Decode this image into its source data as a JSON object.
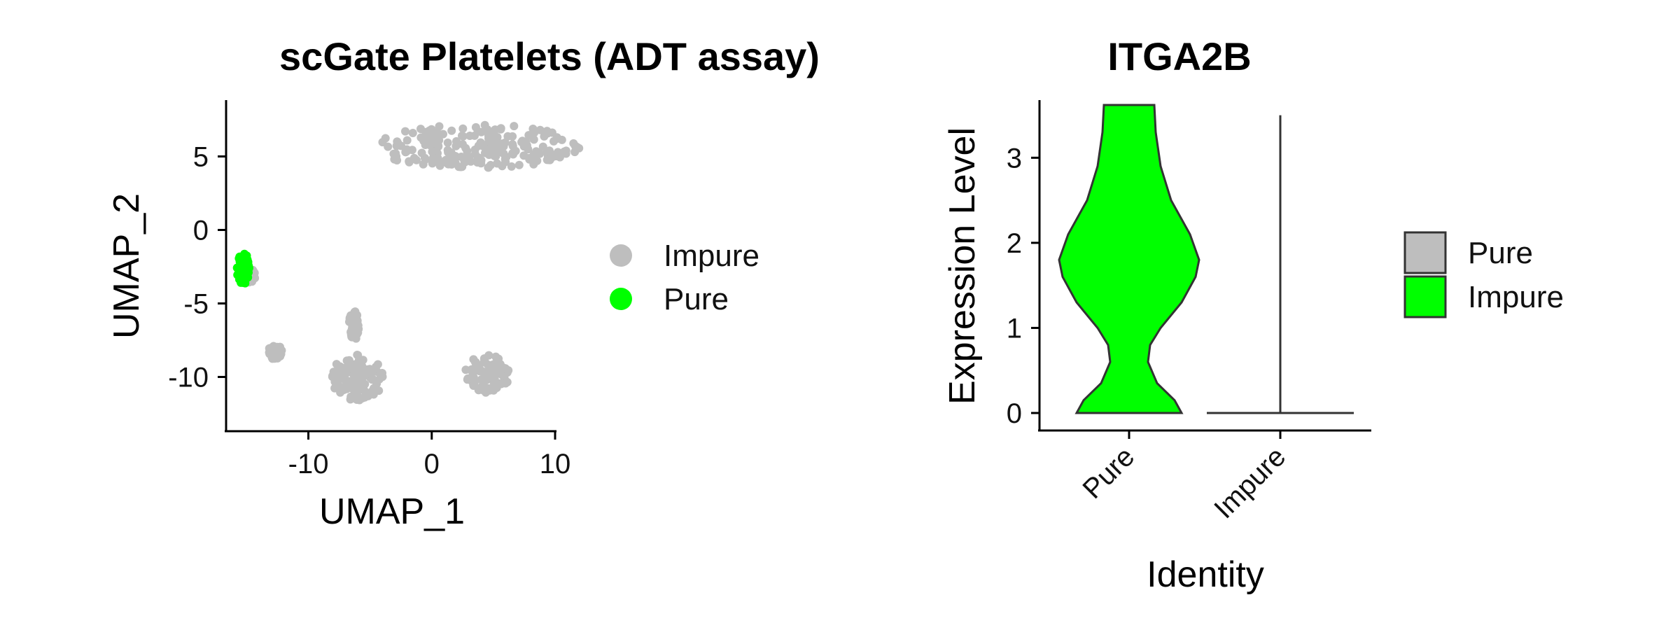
{
  "chart_data": [
    {
      "type": "scatter",
      "title": "scGate Platelets (ADT assay)",
      "xlabel": "UMAP_1",
      "ylabel": "UMAP_2",
      "xlim": [
        -16.5,
        10
      ],
      "ylim": [
        -13.5,
        8.5
      ],
      "xticks": [
        "-10",
        "0",
        "10"
      ],
      "yticks": [
        "5",
        "0",
        "-5",
        "-10"
      ],
      "legend": {
        "placement": "right",
        "entries": [
          {
            "name": "Impure",
            "color": "#BEBEBE"
          },
          {
            "name": "Pure",
            "color": "#00FF00"
          }
        ]
      },
      "clusters": [
        {
          "group": "Impure",
          "cx": 3.5,
          "cy": 5.7,
          "rx": 8.5,
          "ry": 1.5
        },
        {
          "group": "Impure",
          "cx": -6.0,
          "cy": -10.0,
          "rx": 2.2,
          "ry": 1.6
        },
        {
          "group": "Impure",
          "cx": 4.5,
          "cy": -9.8,
          "rx": 1.8,
          "ry": 1.3
        },
        {
          "group": "Impure",
          "cx": -12.7,
          "cy": -8.3,
          "rx": 0.6,
          "ry": 0.5
        },
        {
          "group": "Impure",
          "cx": -6.3,
          "cy": -6.5,
          "rx": 0.4,
          "ry": 1.0
        },
        {
          "group": "Impure",
          "cx": -14.8,
          "cy": -3.1,
          "rx": 0.5,
          "ry": 0.5
        },
        {
          "group": "Pure",
          "cx": -15.3,
          "cy": -2.6,
          "rx": 0.5,
          "ry": 1.1
        }
      ]
    },
    {
      "type": "violin",
      "title": "ITGA2B",
      "xlabel": "Identity",
      "ylabel": "Expression Level",
      "categories": [
        "Pure",
        "Impure"
      ],
      "ylim": [
        -0.2,
        3.8
      ],
      "yticks": [
        "0",
        "1",
        "2",
        "3"
      ],
      "max_values": [
        3.62,
        3.5
      ],
      "legend": {
        "placement": "right",
        "entries": [
          {
            "name": "Pure",
            "color": "#BEBEBE"
          },
          {
            "name": "Impure",
            "color": "#00FF00"
          }
        ]
      }
    }
  ]
}
